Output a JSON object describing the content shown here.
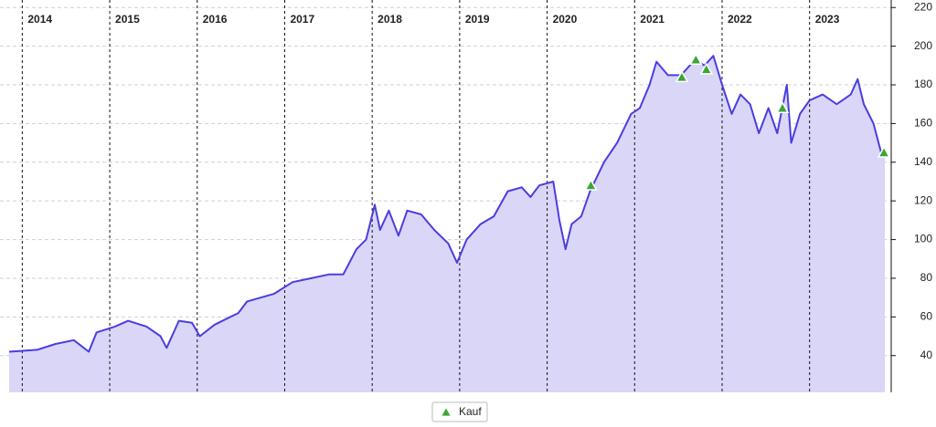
{
  "chart_data": {
    "type": "line",
    "color": "#4a3ee0",
    "fill_color": "#d9d6f7",
    "x": [
      2013.85,
      2014.17,
      2014.38,
      2014.59,
      2014.76,
      2014.85,
      2015.06,
      2015.21,
      2015.42,
      2015.58,
      2015.65,
      2015.79,
      2015.94,
      2016.03,
      2016.2,
      2016.47,
      2016.57,
      2016.88,
      2017.09,
      2017.3,
      2017.51,
      2017.67,
      2017.82,
      2017.93,
      2018.03,
      2018.09,
      2018.19,
      2018.3,
      2018.4,
      2018.56,
      2018.71,
      2018.87,
      2018.97,
      2019.08,
      2019.24,
      2019.39,
      2019.55,
      2019.71,
      2019.81,
      2019.91,
      2020.07,
      2020.14,
      2020.21,
      2020.28,
      2020.39,
      2020.49,
      2020.65,
      2020.8,
      2020.96,
      2021.06,
      2021.17,
      2021.25,
      2021.38,
      2021.53,
      2021.69,
      2021.8,
      2021.9,
      2022.0,
      2022.11,
      2022.21,
      2022.32,
      2022.42,
      2022.53,
      2022.63,
      2022.74,
      2022.79,
      2022.89,
      2023.0,
      2023.15,
      2023.31,
      2023.47,
      2023.55,
      2023.62,
      2023.73,
      2023.83,
      2023.86
    ],
    "values": [
      42,
      43,
      46,
      48,
      42,
      52,
      55,
      58,
      55,
      50,
      44,
      58,
      57,
      50,
      56,
      62,
      68,
      72,
      78,
      80,
      82,
      82,
      95,
      100,
      118,
      105,
      115,
      102,
      115,
      113,
      105,
      98,
      88,
      100,
      108,
      112,
      125,
      127,
      122,
      128,
      130,
      110,
      95,
      108,
      112,
      125,
      140,
      150,
      165,
      168,
      180,
      192,
      185,
      185,
      193,
      190,
      195,
      180,
      165,
      175,
      170,
      155,
      168,
      155,
      180,
      150,
      165,
      172,
      175,
      170,
      175,
      183,
      170,
      160,
      143,
      143
    ],
    "markers": {
      "name": "Kauf",
      "color": "#3fa535",
      "x": [
        2020.5,
        2021.54,
        2021.7,
        2021.82,
        2022.69,
        2023.85
      ],
      "values": [
        128,
        184,
        193,
        188,
        168,
        145
      ]
    },
    "xlim": [
      2013.85,
      2023.86
    ],
    "xticks": [
      2014,
      2015,
      2016,
      2017,
      2018,
      2019,
      2020,
      2021,
      2022,
      2023
    ],
    "ylim": [
      21,
      222
    ],
    "yticks": [
      40,
      60,
      80,
      100,
      120,
      140,
      160,
      180,
      200,
      220
    ],
    "grid": true,
    "legend": "bottom"
  }
}
